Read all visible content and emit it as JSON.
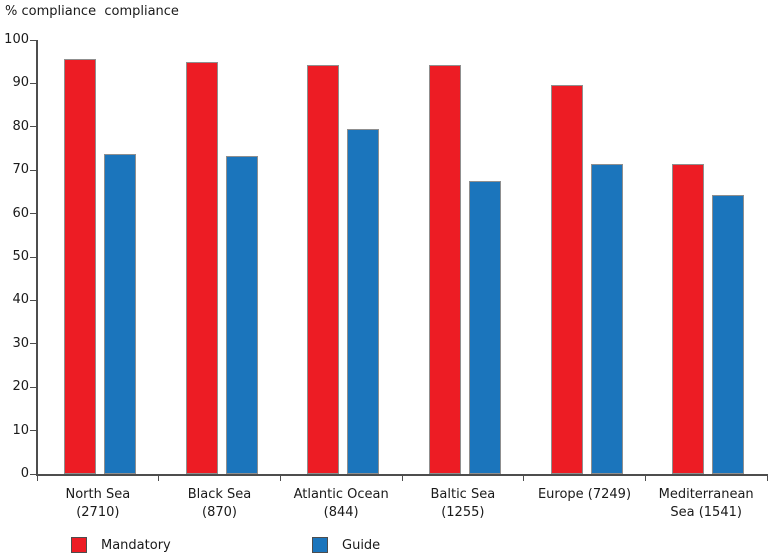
{
  "title": "% compliance  compliance",
  "colors": {
    "mandatory": "#ED1C24",
    "guide": "#1B75BC",
    "axis": "#4d4d4d",
    "bar_outline": "#8f8f8f"
  },
  "legend": [
    {
      "label": "Mandatory",
      "color": "#ED1C24"
    },
    {
      "label": "Guide",
      "color": "#1B75BC"
    }
  ],
  "chart_data": {
    "type": "bar",
    "title": "% compliance  compliance",
    "categories": [
      "North Sea (2710)",
      "Black Sea (870)",
      "Atlantic Ocean (844)",
      "Baltic Sea (1255)",
      "Europe (7249)",
      "Mediterranean Sea (1541)"
    ],
    "category_label_lines": [
      [
        "North Sea",
        "(2710)"
      ],
      [
        "Black Sea",
        "(870)"
      ],
      [
        "Atlantic Ocean",
        "(844)"
      ],
      [
        "Baltic Sea",
        "(1255)"
      ],
      [
        "Europe (7249)",
        ""
      ],
      [
        "Mediterranean",
        "Sea (1541)"
      ]
    ],
    "series": [
      {
        "name": "Mandatory",
        "color": "#ED1C24",
        "values": [
          95.7,
          95.0,
          94.3,
          94.3,
          89.7,
          71.4
        ]
      },
      {
        "name": "Guide",
        "color": "#1B75BC",
        "values": [
          73.7,
          73.2,
          79.4,
          67.5,
          71.4,
          64.2
        ]
      }
    ],
    "xlabel": "",
    "ylabel": "% compliance",
    "ylim": [
      0,
      100
    ],
    "ytick_step": 10,
    "grid": false,
    "legend_position": "bottom"
  }
}
